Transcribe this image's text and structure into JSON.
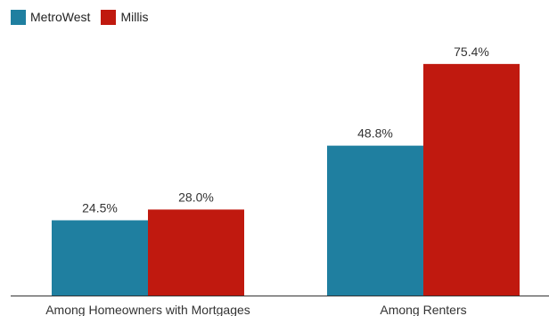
{
  "chart_data": {
    "type": "bar",
    "categories": [
      "Among Homeowners with Mortgages",
      "Among Renters"
    ],
    "series": [
      {
        "name": "MetroWest",
        "values": [
          24.5,
          48.8
        ],
        "labels": [
          "24.5%",
          "48.8%"
        ],
        "color": "#1f7fa0"
      },
      {
        "name": "Millis",
        "values": [
          28.0,
          75.4
        ],
        "labels": [
          "28.0%",
          "75.4%"
        ],
        "color": "#c0190f"
      }
    ],
    "title": "",
    "xlabel": "",
    "ylabel": "",
    "ylim": [
      0,
      80
    ],
    "grid": false,
    "legend_position": "top-left"
  }
}
